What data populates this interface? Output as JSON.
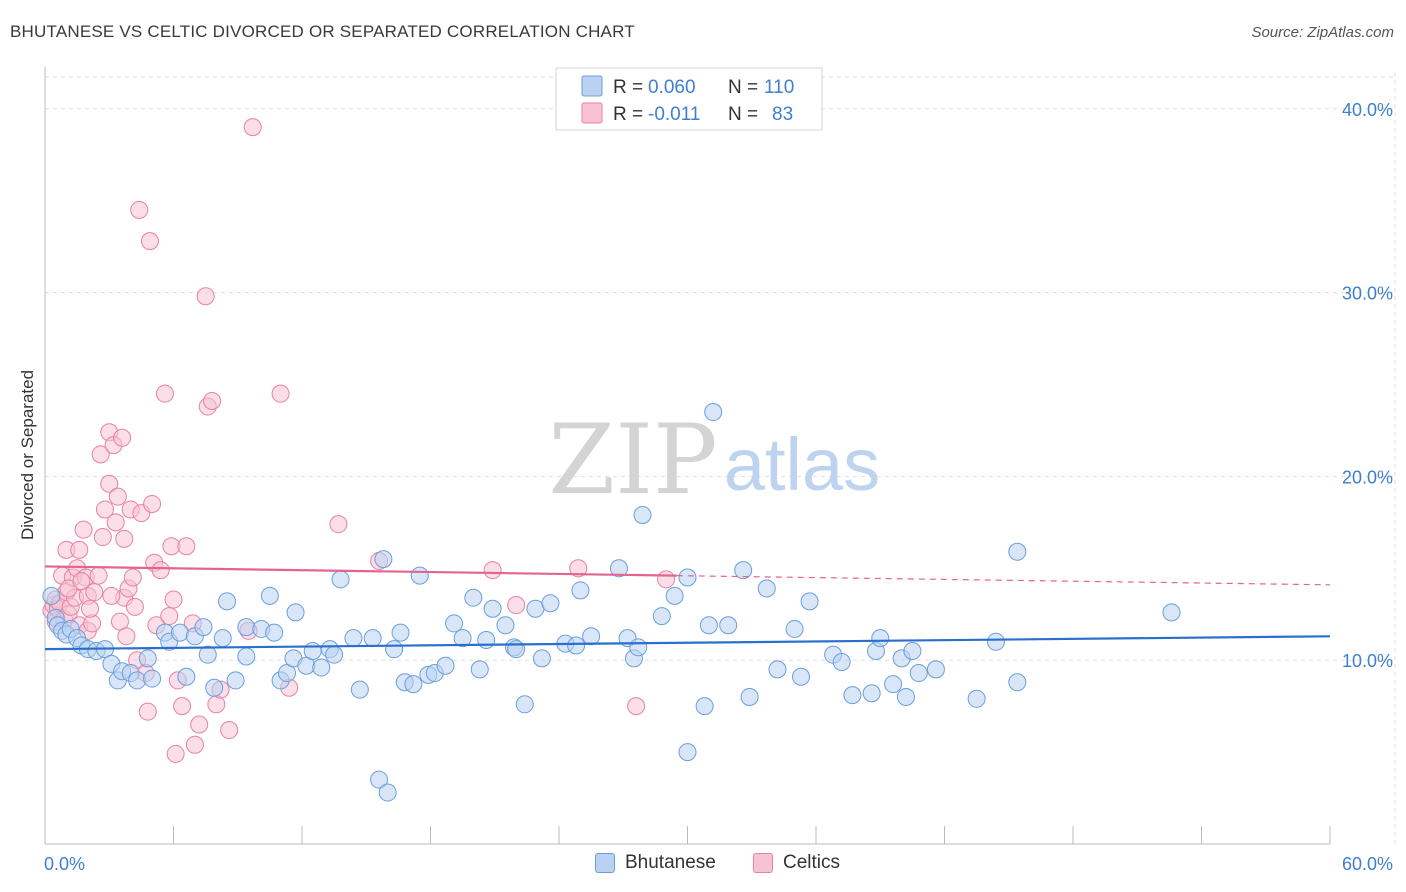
{
  "title": "BHUTANESE VS CELTIC DIVORCED OR SEPARATED CORRELATION CHART",
  "source": "Source: ZipAtlas.com",
  "watermark": {
    "zip": "ZIP",
    "atlas": "atlas"
  },
  "colors": {
    "blue": "#6a9fdc",
    "blue_fill": "#b9d2f2",
    "blue_line": "#2b6fce",
    "pink": "#e882a3",
    "pink_fill": "#f7c3d4",
    "pink_line": "#e4648e",
    "axis_text": "#3f7fd0",
    "grid": "#dddddd"
  },
  "legend_top": {
    "rows": [
      {
        "r_label": "R =",
        "r_value": "0.060",
        "n_label": "N =",
        "n_value": "110",
        "color": "blue"
      },
      {
        "r_label": "R =",
        "r_value": "-0.011",
        "n_label": "N =",
        "n_value": "83",
        "color": "pink"
      }
    ]
  },
  "legend_bottom": [
    {
      "label": "Bhutanese",
      "color": "blue"
    },
    {
      "label": "Celtics",
      "color": "pink"
    }
  ],
  "chart_data": {
    "type": "scatter",
    "title": "BHUTANESE VS CELTIC DIVORCED OR SEPARATED CORRELATION CHART",
    "xlabel": "",
    "ylabel": "Divorced or Separated",
    "xlim": [
      0,
      60
    ],
    "ylim": [
      0,
      42
    ],
    "x_tick_labels": [
      "0.0%",
      "60.0%"
    ],
    "y_ticks": [
      10,
      20,
      30,
      40
    ],
    "y_tick_labels": [
      "10.0%",
      "20.0%",
      "30.0%",
      "40.0%"
    ],
    "grid": true,
    "series": [
      {
        "name": "Bhutanese",
        "color": "blue",
        "trend": {
          "x0": 0,
          "y0": 10.6,
          "x1": 60,
          "y1": 11.3
        },
        "points": [
          [
            0.3,
            13.5
          ],
          [
            0.5,
            12.3
          ],
          [
            0.6,
            11.9
          ],
          [
            0.8,
            11.6
          ],
          [
            1.0,
            11.4
          ],
          [
            1.2,
            11.7
          ],
          [
            1.5,
            11.2
          ],
          [
            1.7,
            10.8
          ],
          [
            2.0,
            10.6
          ],
          [
            2.4,
            10.5
          ],
          [
            2.8,
            10.6
          ],
          [
            3.1,
            9.8
          ],
          [
            3.4,
            8.9
          ],
          [
            3.6,
            9.4
          ],
          [
            4.0,
            9.3
          ],
          [
            4.3,
            8.9
          ],
          [
            4.8,
            10.1
          ],
          [
            5.0,
            9.0
          ],
          [
            5.6,
            11.5
          ],
          [
            5.8,
            11.0
          ],
          [
            6.3,
            11.5
          ],
          [
            6.6,
            9.1
          ],
          [
            7.0,
            11.3
          ],
          [
            7.4,
            11.8
          ],
          [
            7.6,
            10.3
          ],
          [
            7.9,
            8.5
          ],
          [
            8.3,
            11.2
          ],
          [
            8.5,
            13.2
          ],
          [
            8.9,
            8.9
          ],
          [
            9.4,
            11.8
          ],
          [
            9.4,
            10.2
          ],
          [
            10.1,
            11.7
          ],
          [
            10.5,
            13.5
          ],
          [
            10.7,
            11.5
          ],
          [
            11.0,
            8.9
          ],
          [
            11.3,
            9.3
          ],
          [
            11.6,
            10.1
          ],
          [
            11.7,
            12.6
          ],
          [
            12.2,
            9.7
          ],
          [
            12.5,
            10.5
          ],
          [
            12.9,
            9.6
          ],
          [
            13.3,
            10.6
          ],
          [
            13.5,
            10.3
          ],
          [
            13.8,
            14.4
          ],
          [
            14.4,
            11.2
          ],
          [
            14.7,
            8.4
          ],
          [
            15.3,
            11.2
          ],
          [
            15.6,
            3.5
          ],
          [
            15.8,
            15.5
          ],
          [
            16.0,
            2.8
          ],
          [
            16.3,
            10.6
          ],
          [
            16.6,
            11.5
          ],
          [
            16.8,
            8.8
          ],
          [
            17.2,
            8.7
          ],
          [
            17.5,
            14.6
          ],
          [
            17.9,
            9.2
          ],
          [
            18.2,
            9.3
          ],
          [
            18.7,
            9.7
          ],
          [
            19.1,
            12.0
          ],
          [
            19.5,
            11.2
          ],
          [
            20.0,
            13.4
          ],
          [
            20.3,
            9.5
          ],
          [
            20.6,
            11.1
          ],
          [
            20.9,
            12.8
          ],
          [
            21.5,
            11.9
          ],
          [
            21.9,
            10.7
          ],
          [
            22.0,
            10.6
          ],
          [
            22.4,
            7.6
          ],
          [
            22.9,
            12.8
          ],
          [
            23.2,
            10.1
          ],
          [
            23.6,
            13.1
          ],
          [
            24.3,
            10.9
          ],
          [
            24.8,
            10.8
          ],
          [
            25.0,
            13.8
          ],
          [
            25.5,
            11.3
          ],
          [
            26.8,
            15.0
          ],
          [
            27.2,
            11.2
          ],
          [
            27.5,
            10.1
          ],
          [
            27.7,
            10.7
          ],
          [
            27.9,
            17.9
          ],
          [
            28.8,
            12.4
          ],
          [
            29.4,
            13.5
          ],
          [
            30.0,
            5.0
          ],
          [
            30.0,
            14.5
          ],
          [
            30.8,
            7.5
          ],
          [
            31.0,
            11.9
          ],
          [
            31.2,
            23.5
          ],
          [
            31.9,
            11.9
          ],
          [
            32.6,
            14.9
          ],
          [
            32.9,
            8.0
          ],
          [
            33.7,
            13.9
          ],
          [
            34.2,
            9.5
          ],
          [
            35.0,
            11.7
          ],
          [
            35.3,
            9.1
          ],
          [
            35.7,
            13.2
          ],
          [
            36.8,
            10.3
          ],
          [
            37.2,
            9.9
          ],
          [
            37.7,
            8.1
          ],
          [
            38.6,
            8.2
          ],
          [
            38.8,
            10.5
          ],
          [
            39.0,
            11.2
          ],
          [
            39.6,
            8.7
          ],
          [
            40.0,
            10.1
          ],
          [
            40.2,
            8.0
          ],
          [
            40.5,
            10.5
          ],
          [
            40.8,
            9.3
          ],
          [
            41.6,
            9.5
          ],
          [
            43.5,
            7.9
          ],
          [
            44.4,
            11.0
          ],
          [
            45.4,
            8.8
          ],
          [
            45.4,
            15.9
          ],
          [
            52.6,
            12.6
          ]
        ]
      },
      {
        "name": "Celtics",
        "color": "pink",
        "trend": {
          "x0": 0,
          "y0": 15.1,
          "x1": 29.5,
          "y1": 14.6,
          "dash_to_x": 60,
          "dash_to_y": 14.1
        },
        "points": [
          [
            0.3,
            12.7
          ],
          [
            0.4,
            13.0
          ],
          [
            0.5,
            13.3
          ],
          [
            0.5,
            12.1
          ],
          [
            0.6,
            12.8
          ],
          [
            0.7,
            13.1
          ],
          [
            0.8,
            14.6
          ],
          [
            0.9,
            12.2
          ],
          [
            1.0,
            13.7
          ],
          [
            1.0,
            16.0
          ],
          [
            1.1,
            12.5
          ],
          [
            1.2,
            12.9
          ],
          [
            1.3,
            14.5
          ],
          [
            1.4,
            13.4
          ],
          [
            1.5,
            15.0
          ],
          [
            1.6,
            16.0
          ],
          [
            1.6,
            11.9
          ],
          [
            1.8,
            17.1
          ],
          [
            1.9,
            14.5
          ],
          [
            2.0,
            13.5
          ],
          [
            2.0,
            11.6
          ],
          [
            2.2,
            12.0
          ],
          [
            2.3,
            13.7
          ],
          [
            2.5,
            14.6
          ],
          [
            2.6,
            21.2
          ],
          [
            2.7,
            16.7
          ],
          [
            2.8,
            18.2
          ],
          [
            3.0,
            19.6
          ],
          [
            3.0,
            22.4
          ],
          [
            3.2,
            21.7
          ],
          [
            3.3,
            17.5
          ],
          [
            3.4,
            18.9
          ],
          [
            3.5,
            12.1
          ],
          [
            3.6,
            22.1
          ],
          [
            3.7,
            16.6
          ],
          [
            3.7,
            13.4
          ],
          [
            3.8,
            11.3
          ],
          [
            3.9,
            13.9
          ],
          [
            4.0,
            18.2
          ],
          [
            4.1,
            14.5
          ],
          [
            4.2,
            12.9
          ],
          [
            4.3,
            10.0
          ],
          [
            4.4,
            34.5
          ],
          [
            4.5,
            18.0
          ],
          [
            4.7,
            9.3
          ],
          [
            4.8,
            7.2
          ],
          [
            4.9,
            32.8
          ],
          [
            5.0,
            18.5
          ],
          [
            5.1,
            15.3
          ],
          [
            5.2,
            11.9
          ],
          [
            5.4,
            14.9
          ],
          [
            5.6,
            24.5
          ],
          [
            5.8,
            12.4
          ],
          [
            5.9,
            16.2
          ],
          [
            6.0,
            13.3
          ],
          [
            6.1,
            4.9
          ],
          [
            6.2,
            8.9
          ],
          [
            6.4,
            7.5
          ],
          [
            6.6,
            16.2
          ],
          [
            6.9,
            12.0
          ],
          [
            7.0,
            5.4
          ],
          [
            7.2,
            6.5
          ],
          [
            7.5,
            29.8
          ],
          [
            7.6,
            23.8
          ],
          [
            7.8,
            24.1
          ],
          [
            8.0,
            7.6
          ],
          [
            8.2,
            8.4
          ],
          [
            8.6,
            6.2
          ],
          [
            9.5,
            11.6
          ],
          [
            9.7,
            39.0
          ],
          [
            11.0,
            24.5
          ],
          [
            11.4,
            8.5
          ],
          [
            13.7,
            17.4
          ],
          [
            15.6,
            15.4
          ],
          [
            20.9,
            14.9
          ],
          [
            22.0,
            13.0
          ],
          [
            24.9,
            15.0
          ],
          [
            27.6,
            7.5
          ],
          [
            29.0,
            14.4
          ],
          [
            1.1,
            13.9
          ],
          [
            1.7,
            14.3
          ],
          [
            2.1,
            12.8
          ],
          [
            3.1,
            13.5
          ]
        ]
      }
    ]
  }
}
